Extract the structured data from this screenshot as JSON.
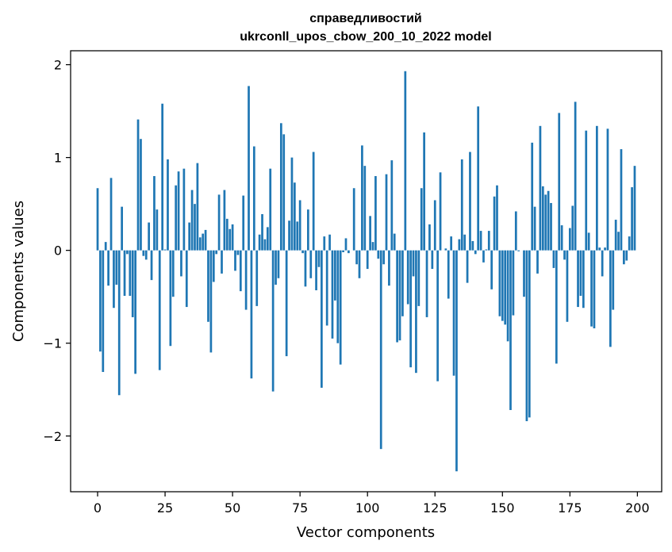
{
  "chart_data": {
    "type": "bar",
    "title": "справедливостий",
    "subtitle": "ukrconll_upos_cbow_200_10_2022 model",
    "xlabel": "Vector components",
    "ylabel": "Components values",
    "xlim": [
      -10,
      209
    ],
    "ylim": [
      -2.6,
      2.15
    ],
    "xticks": [
      0,
      25,
      50,
      75,
      100,
      125,
      150,
      175,
      200
    ],
    "yticks": [
      -2,
      -1,
      0,
      1,
      2
    ],
    "ytick_labels": [
      "−2",
      "−1",
      "0",
      "1",
      "2"
    ],
    "grid": false,
    "color": "#1f77b4",
    "x": [
      0,
      1,
      2,
      3,
      4,
      5,
      6,
      7,
      8,
      9,
      10,
      11,
      12,
      13,
      14,
      15,
      16,
      17,
      18,
      19,
      20,
      21,
      22,
      23,
      24,
      25,
      26,
      27,
      28,
      29,
      30,
      31,
      32,
      33,
      34,
      35,
      36,
      37,
      38,
      39,
      40,
      41,
      42,
      43,
      44,
      45,
      46,
      47,
      48,
      49,
      50,
      51,
      52,
      53,
      54,
      55,
      56,
      57,
      58,
      59,
      60,
      61,
      62,
      63,
      64,
      65,
      66,
      67,
      68,
      69,
      70,
      71,
      72,
      73,
      74,
      75,
      76,
      77,
      78,
      79,
      80,
      81,
      82,
      83,
      84,
      85,
      86,
      87,
      88,
      89,
      90,
      91,
      92,
      93,
      94,
      95,
      96,
      97,
      98,
      99,
      100,
      101,
      102,
      103,
      104,
      105,
      106,
      107,
      108,
      109,
      110,
      111,
      112,
      113,
      114,
      115,
      116,
      117,
      118,
      119,
      120,
      121,
      122,
      123,
      124,
      125,
      126,
      127,
      128,
      129,
      130,
      131,
      132,
      133,
      134,
      135,
      136,
      137,
      138,
      139,
      140,
      141,
      142,
      143,
      144,
      145,
      146,
      147,
      148,
      149,
      150,
      151,
      152,
      153,
      154,
      155,
      156,
      157,
      158,
      159,
      160,
      161,
      162,
      163,
      164,
      165,
      166,
      167,
      168,
      169,
      170,
      171,
      172,
      173,
      174,
      175,
      176,
      177,
      178,
      179,
      180,
      181,
      182,
      183,
      184,
      185,
      186,
      187,
      188,
      189,
      190,
      191,
      192,
      193,
      194,
      195,
      196,
      197,
      198,
      199
    ],
    "values": [
      0.67,
      -1.09,
      -1.31,
      0.09,
      -0.38,
      0.78,
      -0.62,
      -0.37,
      -1.56,
      0.47,
      -0.49,
      -0.04,
      -0.49,
      -0.72,
      -1.33,
      1.41,
      1.2,
      -0.06,
      -0.1,
      0.3,
      -0.32,
      0.8,
      0.44,
      -1.29,
      1.58,
      0.01,
      0.98,
      -1.03,
      -0.5,
      0.7,
      0.85,
      -0.28,
      0.88,
      -0.61,
      0.3,
      0.65,
      0.5,
      0.94,
      0.14,
      0.18,
      0.22,
      -0.77,
      -1.1,
      -0.34,
      -0.04,
      0.6,
      -0.25,
      0.65,
      0.34,
      0.23,
      0.28,
      -0.22,
      -0.05,
      -0.44,
      0.59,
      -0.64,
      1.77,
      -1.38,
      1.12,
      -0.6,
      0.17,
      0.39,
      0.12,
      0.25,
      0.88,
      -1.52,
      -0.37,
      -0.3,
      1.37,
      1.25,
      -1.14,
      0.32,
      1.0,
      0.73,
      0.31,
      0.54,
      -0.03,
      -0.39,
      0.44,
      -0.3,
      1.06,
      -0.43,
      -0.18,
      -1.48,
      0.15,
      -0.81,
      0.17,
      -0.95,
      -0.54,
      -1.0,
      -1.23,
      -0.02,
      0.13,
      -0.03,
      0.0,
      0.67,
      -0.15,
      -0.3,
      1.13,
      0.91,
      -0.2,
      0.37,
      0.09,
      0.8,
      -0.09,
      -2.14,
      -0.15,
      0.82,
      -0.38,
      0.97,
      0.18,
      -0.99,
      -0.97,
      -0.71,
      1.93,
      -0.58,
      -1.26,
      -0.28,
      -1.32,
      -0.6,
      0.67,
      1.27,
      -0.72,
      0.28,
      -0.2,
      0.54,
      -1.41,
      0.84,
      0.0,
      0.02,
      -0.52,
      0.15,
      -1.35,
      -2.38,
      0.12,
      0.98,
      0.17,
      -0.35,
      1.06,
      0.1,
      -0.04,
      1.55,
      0.21,
      -0.13,
      0.01,
      0.21,
      -0.42,
      0.58,
      0.7,
      -0.71,
      -0.76,
      -0.8,
      -0.98,
      -1.72,
      -0.7,
      0.42,
      -0.01,
      0.0,
      -0.5,
      -1.84,
      -1.8,
      1.16,
      0.47,
      -0.25,
      1.34,
      0.69,
      0.6,
      0.64,
      0.51,
      -0.19,
      -1.22,
      1.48,
      0.27,
      -0.1,
      -0.77,
      0.24,
      0.48,
      1.6,
      -0.61,
      -0.49,
      -0.62,
      1.29,
      0.19,
      -0.82,
      -0.84,
      1.34,
      0.03,
      -0.28,
      0.03,
      1.31,
      -1.04,
      -0.64,
      0.33,
      0.2,
      1.09,
      -0.15,
      -0.11,
      0.15,
      0.68,
      0.91
    ]
  }
}
